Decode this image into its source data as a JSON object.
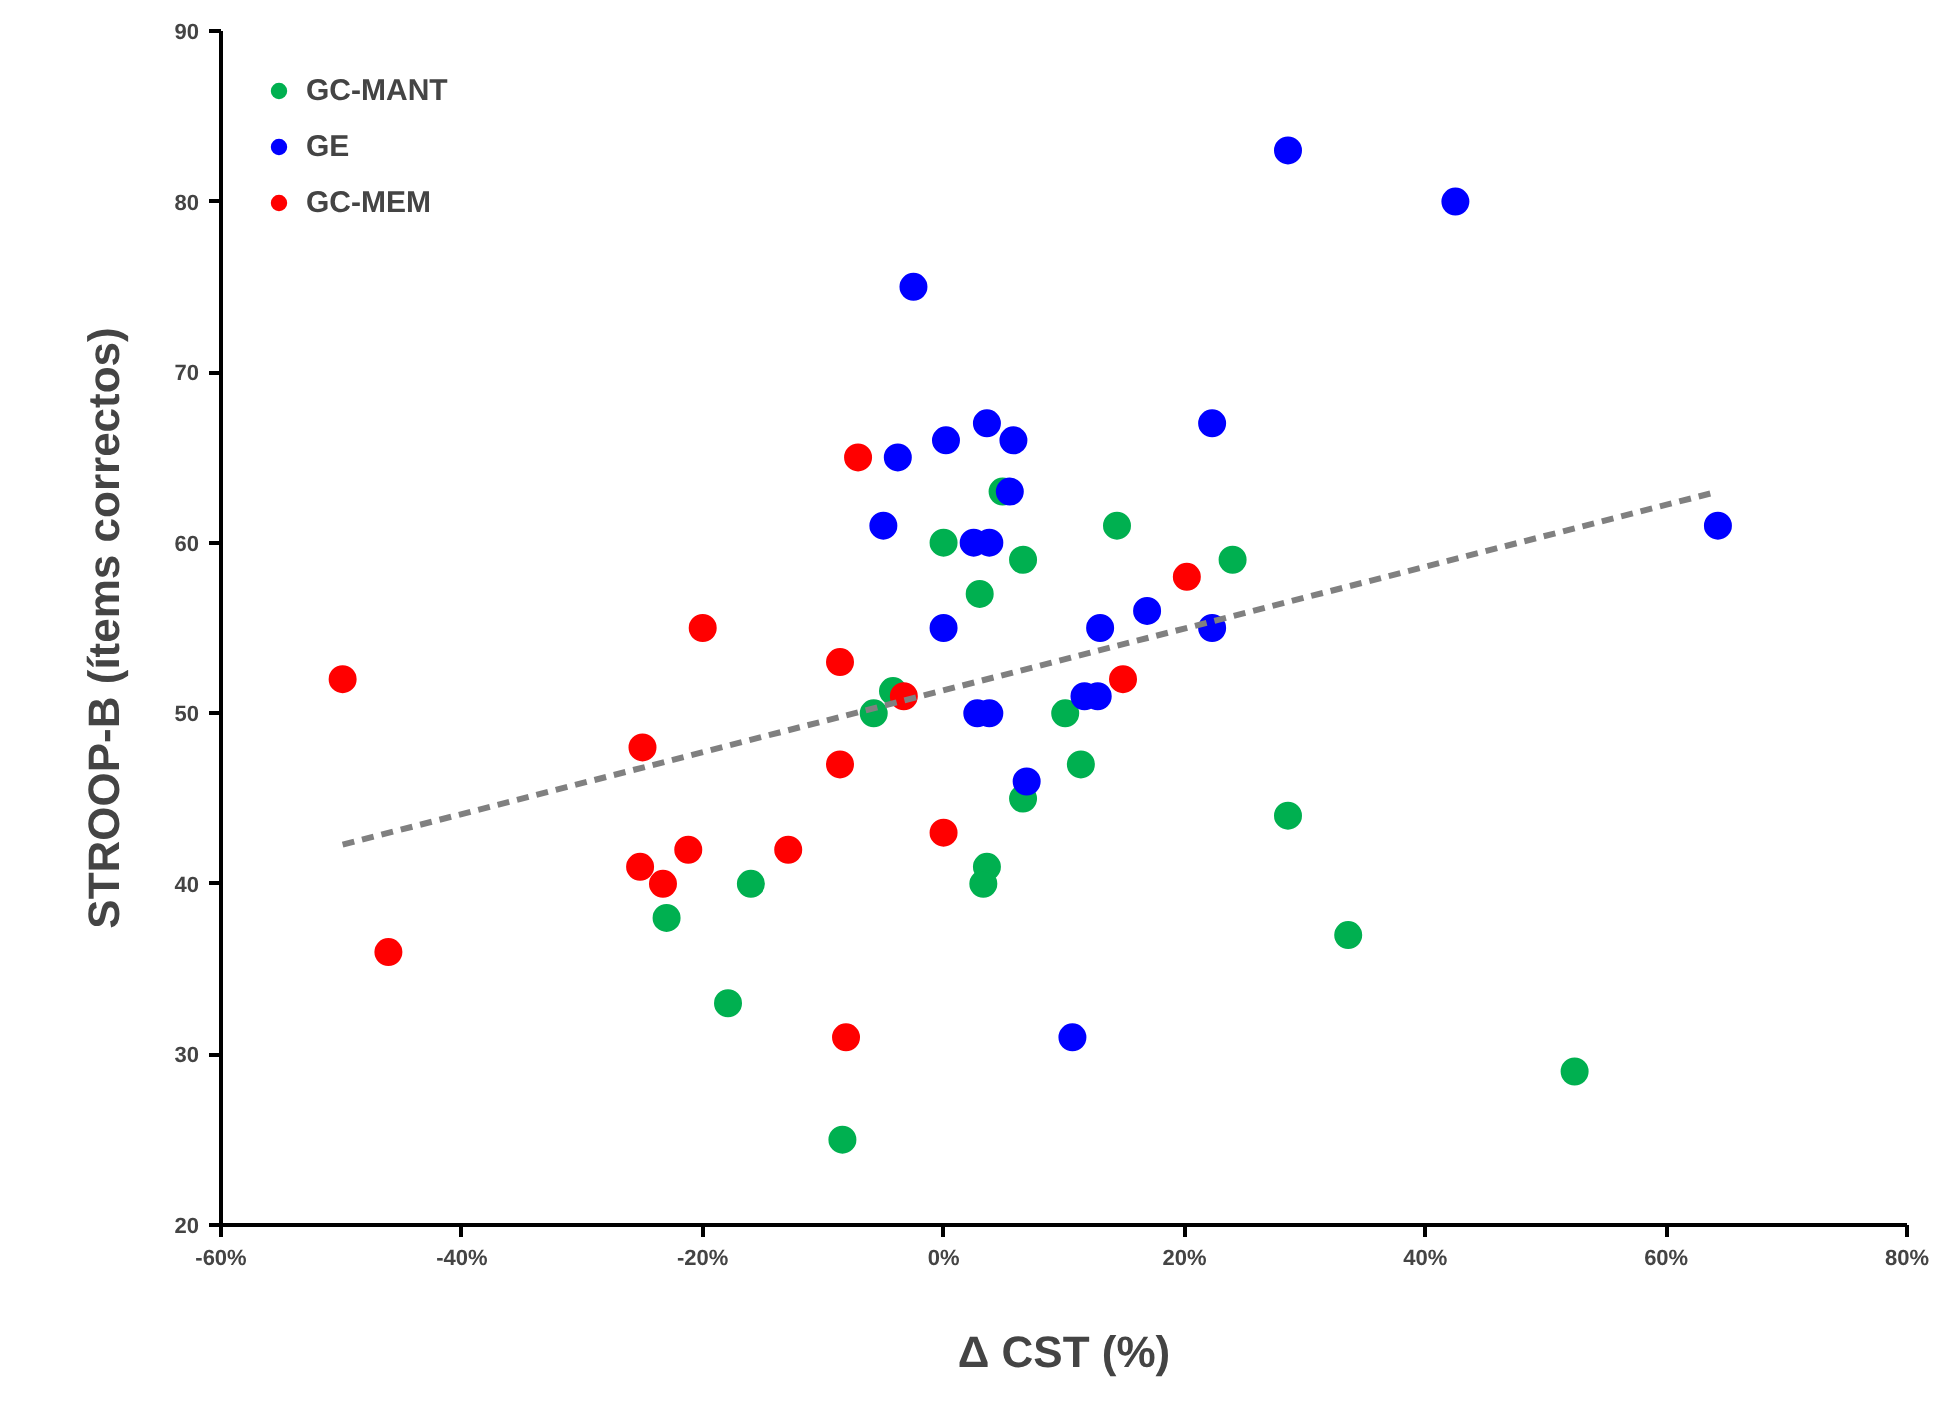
{
  "chart_data": {
    "type": "scatter",
    "xlabel": "Δ CST (%)",
    "ylabel": "STROOP-B (ítems correctos)",
    "xlim": [
      -60,
      80
    ],
    "ylim": [
      20,
      90
    ],
    "xticks": [
      {
        "value": -60,
        "label": "-60%"
      },
      {
        "value": -40,
        "label": "-40%"
      },
      {
        "value": -20,
        "label": "-20%"
      },
      {
        "value": 0,
        "label": "0%"
      },
      {
        "value": 20,
        "label": "20%"
      },
      {
        "value": 40,
        "label": "40%"
      },
      {
        "value": 60,
        "label": "60%"
      },
      {
        "value": 80,
        "label": "80%"
      }
    ],
    "yticks": [
      20,
      30,
      40,
      50,
      60,
      70,
      80,
      90
    ],
    "grid": false,
    "legend": "top left",
    "series": [
      {
        "name": "GC-MANT",
        "color": "#00b050",
        "marker": "circle",
        "x": [
          0,
          3,
          6.6,
          14.4,
          24,
          4.9,
          -5.8,
          10.1,
          11.4,
          6.6,
          3.6,
          3.3,
          -23,
          -16,
          -17.9,
          -8.4,
          28.6,
          33.6,
          52.4,
          -4.2
        ],
        "values": [
          60,
          57,
          59,
          61,
          59,
          63,
          50,
          50,
          47,
          45,
          41,
          40,
          38,
          40,
          33,
          25,
          44,
          37,
          29,
          51.3
        ]
      },
      {
        "name": "GE",
        "color": "#0000ff",
        "marker": "circle",
        "x": [
          -2.5,
          28.6,
          42.5,
          -3.8,
          0.2,
          3.6,
          5.8,
          5.5,
          -5,
          2.5,
          3.8,
          22.3,
          64.3,
          0,
          13,
          16.9,
          22.3,
          11.7,
          12.8,
          2.8,
          3.8,
          6.9,
          10.7
        ],
        "values": [
          75,
          83,
          80,
          65,
          66,
          67,
          66,
          63,
          61,
          60,
          60,
          67,
          61,
          55,
          55,
          56,
          55,
          51,
          51,
          50,
          50,
          46,
          31
        ]
      },
      {
        "name": "GC-MEM",
        "color": "#ff0000",
        "marker": "circle",
        "x": [
          -7.1,
          -49.9,
          -20,
          -8.6,
          -3.3,
          -25,
          -8.6,
          0,
          -25.2,
          -21.2,
          -12.9,
          -23.3,
          -46.1,
          -8.1,
          20.2,
          14.9
        ],
        "values": [
          65,
          52,
          55,
          53,
          51,
          48,
          47,
          43,
          41,
          42,
          42,
          40,
          36,
          31,
          58,
          52
        ]
      },
      {
        "type": "line",
        "color": "#808080",
        "line_style": "dashed",
        "marker": "none",
        "x": [
          -49.9,
          64.3
        ],
        "values": [
          42.3,
          63
        ]
      }
    ]
  }
}
